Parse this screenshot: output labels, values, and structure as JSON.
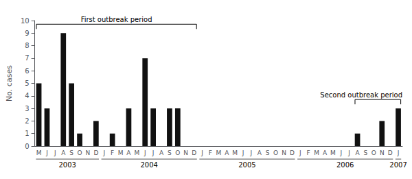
{
  "chart_data": {
    "type": "bar",
    "ylabel": "No. cases",
    "categories": [
      "M",
      "J",
      "J",
      "A",
      "S",
      "O",
      "N",
      "D",
      "J",
      "F",
      "M",
      "A",
      "M",
      "J",
      "J",
      "A",
      "S",
      "O",
      "N",
      "D",
      "J",
      "F",
      "M",
      "A",
      "M",
      "J",
      "J",
      "A",
      "S",
      "O",
      "N",
      "D",
      "J",
      "F",
      "M",
      "A",
      "M",
      "J",
      "J",
      "A",
      "S",
      "O",
      "N",
      "D",
      "J"
    ],
    "values": [
      5,
      3,
      0,
      9,
      5,
      1,
      0,
      2,
      0,
      1,
      0,
      3,
      0,
      7,
      3,
      0,
      3,
      3,
      0,
      0,
      0,
      0,
      0,
      0,
      0,
      0,
      0,
      0,
      0,
      0,
      0,
      0,
      0,
      0,
      0,
      0,
      0,
      0,
      0,
      1,
      0,
      0,
      2,
      0,
      3
    ],
    "color": "#111111",
    "ylim": [
      0,
      10
    ],
    "yticks": [
      0,
      1,
      2,
      3,
      4,
      5,
      6,
      7,
      8,
      9,
      10
    ],
    "grid": false,
    "groups": [
      {
        "label": "2003",
        "start": 0,
        "end": 7
      },
      {
        "label": "2004",
        "start": 8,
        "end": 19
      },
      {
        "label": "2005",
        "start": 20,
        "end": 31
      },
      {
        "label": "2006",
        "start": 32,
        "end": 43
      },
      {
        "label": "2007",
        "start": 44,
        "end": 44
      }
    ],
    "annotations": [
      {
        "text": "First outbreak period",
        "start": 0,
        "end": 19
      },
      {
        "text": "Second outbreak period",
        "start": 39,
        "end": 44
      }
    ]
  }
}
